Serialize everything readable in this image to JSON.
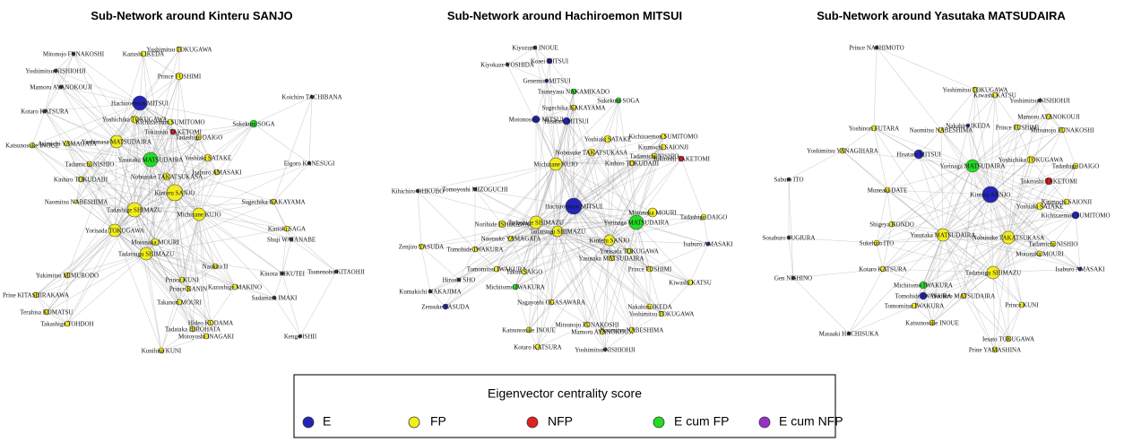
{
  "panels": [
    {
      "title": "Sub-Network around Kinteru SANJO",
      "nodes": [
        {
          "label": "Yoshimitsu TOKUGAWA",
          "color": "#f2ee1c"
        },
        {
          "label": "Kazushi IKEDA",
          "color": "#f2ee1c"
        },
        {
          "label": "Mitonojo FUNAKOSHI",
          "color": "#333333"
        },
        {
          "label": "Yoshimitsu NISHIOHJI",
          "color": "#333333"
        },
        {
          "label": "Prince FUSHIMI",
          "color": "#f2ee1c"
        },
        {
          "label": "Mamoru AYANOKOUJI",
          "color": "#333333"
        },
        {
          "label": "Kotaro KATSURA",
          "color": "#333333"
        },
        {
          "label": "Koichiro TACHIBANA",
          "color": "#333333"
        },
        {
          "label": "Yoshichika TOKUGAWA",
          "color": "#f2ee1c"
        },
        {
          "label": "Kichizaemon SUMITOMO",
          "color": "#f2ee1c"
        },
        {
          "label": "Hachiroemon MITSUI",
          "color": "#2424b8"
        },
        {
          "label": "Katsunosuke INOUE",
          "color": "#f2ee1c"
        },
        {
          "label": "Arimichi YAMAGATA",
          "color": "#f2ee1c"
        },
        {
          "label": "Tadashige DAIGO",
          "color": "#f2ee1c"
        },
        {
          "label": "Yoshimasa MATSUDAIRA",
          "color": "#f2ee1c"
        },
        {
          "label": "Tokitoshi TAKETOMI",
          "color": "#e02020"
        },
        {
          "label": "Sukekuni SOGA",
          "color": "#22dd22"
        },
        {
          "label": "Eigoro KANESUGI",
          "color": "#333333"
        },
        {
          "label": "Yoshiaki SATAKE",
          "color": "#f2ee1c"
        },
        {
          "label": "Yasutaka MATSUDAIRA",
          "color": "#22dd22"
        },
        {
          "label": "Tadamichi NISHIO",
          "color": "#f2ee1c"
        },
        {
          "label": "Isaburo AMASAKI",
          "color": "#f2ee1c"
        },
        {
          "label": "Nobusuke TAKATSUKASA",
          "color": "#f2ee1c"
        },
        {
          "label": "Kinhiro TOKUDAIJI",
          "color": "#f2ee1c"
        },
        {
          "label": "Naomitsu NABESHIMA",
          "color": "#f2ee1c"
        },
        {
          "label": "Kinteru SANJO",
          "color": "#f2ee1c"
        },
        {
          "label": "Michizane KUJO",
          "color": "#f2ee1c"
        },
        {
          "label": "Sugechika NAKAYAMA",
          "color": "#f2ee1c"
        },
        {
          "label": "Tadashige SHIMAZU",
          "color": "#f2ee1c"
        },
        {
          "label": "Kintoki SAGA",
          "color": "#f2ee1c"
        },
        {
          "label": "Shuji WATANABE",
          "color": "#333333"
        },
        {
          "label": "Yorisada TOKUGAWA",
          "color": "#f2ee1c"
        },
        {
          "label": "Motonaka MOURI",
          "color": "#f2ee1c"
        },
        {
          "label": "Tadatsugu SHIMAZU",
          "color": "#f2ee1c"
        },
        {
          "label": "Naokita II",
          "color": "#f2ee1c"
        },
        {
          "label": "Kinosa KIKUTEI",
          "color": "#333333"
        },
        {
          "label": "Tsunenobu KITAOHJI",
          "color": "#333333"
        },
        {
          "label": "Yukimitsu MIMURODO",
          "color": "#f2ee1c"
        },
        {
          "label": "Prince KUNI",
          "color": "#f2ee1c"
        },
        {
          "label": "Prince KANIN",
          "color": "#f2ee1c"
        },
        {
          "label": "Kazushige MAKINO",
          "color": "#f2ee1c"
        },
        {
          "label": "Prine KITASHIRAKAWA",
          "color": "#f2ee1c"
        },
        {
          "label": "Sadamasa IMAKI",
          "color": "#333333"
        },
        {
          "label": "Takanori MOURI",
          "color": "#f2ee1c"
        },
        {
          "label": "Terahisa KOMATSU",
          "color": "#f2ee1c"
        },
        {
          "label": "Takashige TOHDOH",
          "color": "#f2ee1c"
        },
        {
          "label": "Hideo KODAMA",
          "color": "#f2ee1c"
        },
        {
          "label": "Tadataka HIROHATA",
          "color": "#f2ee1c"
        },
        {
          "label": "Motoyoshi INAGAKI",
          "color": "#f2ee1c"
        },
        {
          "label": "Kunihisa KUNI",
          "color": "#f2ee1c"
        },
        {
          "label": "Kengo ISHII",
          "color": "#333333"
        }
      ]
    },
    {
      "title": "Sub-Network around Hachiroemon MITSUI",
      "nodes": [
        {
          "label": "Kiyozumi INOUE",
          "color": "#333333"
        },
        {
          "label": "Kiyokaze YOSHIDA",
          "color": "#333333"
        },
        {
          "label": "Kosei MITSUI",
          "color": "#2424b8"
        },
        {
          "label": "Genemon MITSUI",
          "color": "#2424b8"
        },
        {
          "label": "Tsuneyasu NAKAMIKADO",
          "color": "#22dd22"
        },
        {
          "label": "Sukekuni SOGA",
          "color": "#22dd22"
        },
        {
          "label": "Sugechika NAKAYAMA",
          "color": "#f2ee1c"
        },
        {
          "label": "Motonosuke MITSUI",
          "color": "#2424b8"
        },
        {
          "label": "Hisataro MITSUI",
          "color": "#2424b8"
        },
        {
          "label": "Yoshiaki SATAKE",
          "color": "#f2ee1c"
        },
        {
          "label": "Kichizaemon SUMITOMO",
          "color": "#f2ee1c"
        },
        {
          "label": "Kinmochi SAIONJI",
          "color": "#f2ee1c"
        },
        {
          "label": "Nobusuke TAKATSUKASA",
          "color": "#f2ee1c"
        },
        {
          "label": "Tadamichi NISHIO",
          "color": "#f2ee1c"
        },
        {
          "label": "Michizane KUJO",
          "color": "#f2ee1c"
        },
        {
          "label": "Kinhiro TOKUDAIJI",
          "color": "#f2ee1c"
        },
        {
          "label": "Tokitoshi TAKETOMI",
          "color": "#e02020"
        },
        {
          "label": "Kihichiro OHKUBO",
          "color": "#333333"
        },
        {
          "label": "Tomoyoshi MIZOGUCHI",
          "color": "#333333"
        },
        {
          "label": "Hachiroemon MITSUI",
          "color": "#2424b8"
        },
        {
          "label": "Motonaka MOURI",
          "color": "#f2ee1c"
        },
        {
          "label": "Tadashige DAIGO",
          "color": "#f2ee1c"
        },
        {
          "label": "Norihide ISHIKAWA",
          "color": "#f2ee1c"
        },
        {
          "label": "Kinteru SANJO",
          "color": "#f2ee1c"
        },
        {
          "label": "Yorinaga MATSUDAIRA",
          "color": "#22dd22"
        },
        {
          "label": "Tadatsugu SHIMAZU",
          "color": "#f2ee1c"
        },
        {
          "label": "Tadashige SHIMAZU",
          "color": "#f2ee1c"
        },
        {
          "label": "Naotsuke YAMAGATA",
          "color": "#f2ee1c"
        },
        {
          "label": "Tomohide IWAKURA",
          "color": "#f2ee1c"
        },
        {
          "label": "Zenjiro YASUDA",
          "color": "#f2ee1c"
        },
        {
          "label": "Yasutaka MATSUDAIRA",
          "color": "#f2ee1c"
        },
        {
          "label": "Yorisada TOKUGAWA",
          "color": "#f2ee1c"
        },
        {
          "label": "Isaburo AMASAKI",
          "color": "#2424b8"
        },
        {
          "label": "Tomomitsu IWAKURA",
          "color": "#f2ee1c"
        },
        {
          "label": "Takuo SAIGO",
          "color": "#f2ee1c"
        },
        {
          "label": "Prince FUSHIMI",
          "color": "#f2ee1c"
        },
        {
          "label": "Hiroshi SHO",
          "color": "#333333"
        },
        {
          "label": "Michitomo IWAKURA",
          "color": "#22dd22"
        },
        {
          "label": "Kumakichi NAKAJIMA",
          "color": "#333333"
        },
        {
          "label": "Kiwashi KATSU",
          "color": "#f2ee1c"
        },
        {
          "label": "Zensuke YASUDA",
          "color": "#2424b8"
        },
        {
          "label": "Nagayoshi OGASAWARA",
          "color": "#f2ee1c"
        },
        {
          "label": "Nakahiro IKEDA",
          "color": "#f2ee1c"
        },
        {
          "label": "Yoshimitsu TOKUGAWA",
          "color": "#f2ee1c"
        },
        {
          "label": "Katsunosuke INOUE",
          "color": "#f2ee1c"
        },
        {
          "label": "Mitsunojo FUNAKOSHI",
          "color": "#f2ee1c"
        },
        {
          "label": "Mamoru AYANOKOUJI",
          "color": "#f2ee1c"
        },
        {
          "label": "Naomitsu NABESHIMA",
          "color": "#f2ee1c"
        },
        {
          "label": "Kotaro KATSURA",
          "color": "#f2ee1c"
        },
        {
          "label": "Yoshimitsu NISHIOHJI",
          "color": "#333333"
        }
      ]
    },
    {
      "title": "Sub-Network around Yasutaka MATSUDAIRA",
      "nodes": [
        {
          "label": "Prince NASHIMOTO",
          "color": "#333333"
        },
        {
          "label": "Yoshimitsu TOKUGAWA",
          "color": "#f2ee1c"
        },
        {
          "label": "Kiwashi KATSU",
          "color": "#f2ee1c"
        },
        {
          "label": "Yoshimitsu NISHIOHJI",
          "color": "#333333"
        },
        {
          "label": "Mamoru AYANOKOUJI",
          "color": "#f2ee1c"
        },
        {
          "label": "Yoshinori FUTARA",
          "color": "#f2ee1c"
        },
        {
          "label": "Yoshimitsu YANAGIHARA",
          "color": "#f2ee1c"
        },
        {
          "label": "Naomitsu NABESHIMA",
          "color": "#f2ee1c"
        },
        {
          "label": "Nakahiro IKEDA",
          "color": "#2424b8"
        },
        {
          "label": "Prince FUSHIMI",
          "color": "#f2ee1c"
        },
        {
          "label": "Mitsunojo FUNAKOSHI",
          "color": "#f2ee1c"
        },
        {
          "label": "Hisataro MITSUI",
          "color": "#2424b8"
        },
        {
          "label": "Yorinaga MATSUDAIRA",
          "color": "#22dd22"
        },
        {
          "label": "Yoshichika TOKUGAWA",
          "color": "#f2ee1c"
        },
        {
          "label": "Tadashige DAIGO",
          "color": "#f2ee1c"
        },
        {
          "label": "Muneaki DATE",
          "color": "#f2ee1c"
        },
        {
          "label": "Saburo ITO",
          "color": "#333333"
        },
        {
          "label": "Kinteru SANJO",
          "color": "#2424b8"
        },
        {
          "label": "Tokitoshi TAKETOMI",
          "color": "#e02020"
        },
        {
          "label": "Kinmochi SAIONJI",
          "color": "#f2ee1c"
        },
        {
          "label": "Yoshiaki SATAKE",
          "color": "#f2ee1c"
        },
        {
          "label": "Kichizaemon SUMITOMO",
          "color": "#2424b8"
        },
        {
          "label": "Yasutaka MATSUDAIRA",
          "color": "#f2ee1c"
        },
        {
          "label": "Shigeya KONDO",
          "color": "#f2ee1c"
        },
        {
          "label": "Nobusuke TAKATSUKASA",
          "color": "#f2ee1c"
        },
        {
          "label": "Tadamichi NISHIO",
          "color": "#f2ee1c"
        },
        {
          "label": "Motonaka MOURI",
          "color": "#f2ee1c"
        },
        {
          "label": "Sukehiro ITO",
          "color": "#f2ee1c"
        },
        {
          "label": "Sosaburo SUGIURA",
          "color": "#333333"
        },
        {
          "label": "Tadatsugu SHIMAZU",
          "color": "#f2ee1c"
        },
        {
          "label": "Kotaro KATSURA",
          "color": "#f2ee1c"
        },
        {
          "label": "Isaburo AMASAKI",
          "color": "#2424b8"
        },
        {
          "label": "Gen NISHINO",
          "color": "#333333"
        },
        {
          "label": "Michitomo IWAKURA",
          "color": "#22dd22"
        },
        {
          "label": "Tomohide IWAKURA",
          "color": "#2424b8"
        },
        {
          "label": "Naohiro MATSUDAIRA",
          "color": "#f2ee1c"
        },
        {
          "label": "Tomomitsu IWAKURA",
          "color": "#f2ee1c"
        },
        {
          "label": "Prince KUNI",
          "color": "#f2ee1c"
        },
        {
          "label": "Katsunosuke INOUE",
          "color": "#f2ee1c"
        },
        {
          "label": "Masaaki HACHISUKA",
          "color": "#333333"
        },
        {
          "label": "Iesato TOKUGAWA",
          "color": "#f2ee1c"
        },
        {
          "label": "Prine YAMASHINA",
          "color": "#f2ee1c"
        }
      ]
    }
  ],
  "legend": {
    "title": "Eigenvector centrality score",
    "items": [
      {
        "label": "E",
        "color": "#2424b8"
      },
      {
        "label": "FP",
        "color": "#f2ee1c"
      },
      {
        "label": "NFP",
        "color": "#e02020"
      },
      {
        "label": "E cum FP",
        "color": "#22dd22"
      },
      {
        "label": "E cum NFP",
        "color": "#9b30c8"
      }
    ]
  }
}
